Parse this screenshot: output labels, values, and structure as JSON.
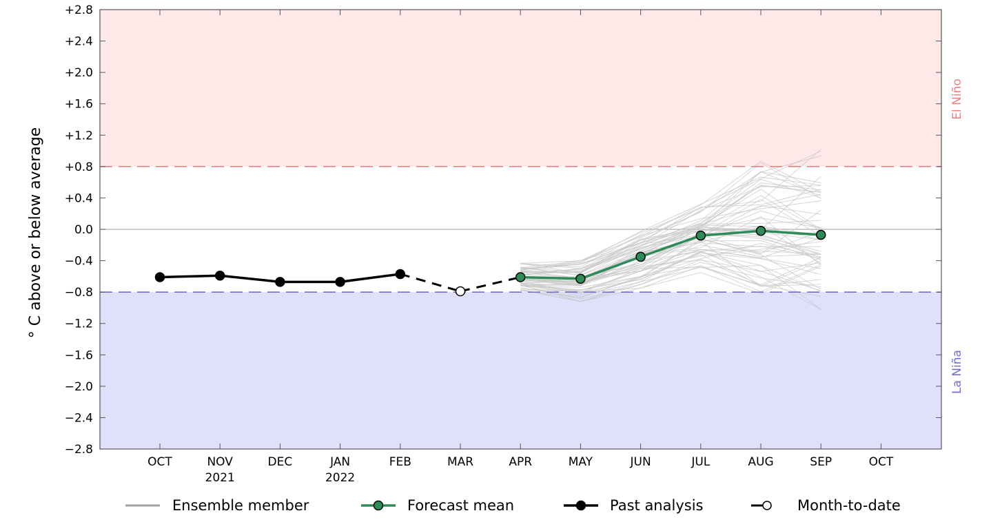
{
  "chart_data": {
    "type": "line",
    "ylabel": "° C above or below average",
    "ylim": [
      -2.8,
      2.8
    ],
    "y_ticks": [
      "+2.8",
      "+2.4",
      "+2.0",
      "+1.6",
      "+1.2",
      "+0.8",
      "+0.4",
      "0.0",
      "−0.4",
      "−0.8",
      "−1.2",
      "−1.6",
      "−2.0",
      "−2.4",
      "−2.8"
    ],
    "y_tick_values": [
      2.8,
      2.4,
      2.0,
      1.6,
      1.2,
      0.8,
      0.4,
      0.0,
      -0.4,
      -0.8,
      -1.2,
      -1.6,
      -2.0,
      -2.4,
      -2.8
    ],
    "categories": [
      "OCT",
      "NOV",
      "DEC",
      "JAN",
      "FEB",
      "MAR",
      "APR",
      "MAY",
      "JUN",
      "JUL",
      "AUG",
      "SEP",
      "OCT"
    ],
    "category_years": [
      "",
      "2021",
      "",
      "2022",
      "",
      "",
      "",
      "",
      "",
      "",
      "",
      "",
      ""
    ],
    "thresholds": {
      "el_nino": {
        "label": "El Niño",
        "value": 0.8,
        "color": "#f08080",
        "fill": "#ffe8e8"
      },
      "la_nina": {
        "label": "La Niña",
        "value": -0.8,
        "color": "#7070c8",
        "fill": "#e0e0fc"
      }
    },
    "past_analysis": {
      "name": "Past analysis",
      "months": [
        "OCT",
        "NOV",
        "DEC",
        "JAN",
        "FEB"
      ],
      "values": [
        -0.61,
        -0.59,
        -0.67,
        -0.67,
        -0.57
      ]
    },
    "month_to_date": {
      "name": "Month-to-date",
      "month": "MAR",
      "value": -0.79
    },
    "forecast_mean": {
      "name": "Forecast mean",
      "months": [
        "APR",
        "MAY",
        "JUN",
        "JUL",
        "AUG",
        "SEP"
      ],
      "values": [
        -0.61,
        -0.63,
        -0.35,
        -0.08,
        -0.02,
        -0.07
      ],
      "color": "#2e8b57"
    },
    "ensemble": {
      "name": "Ensemble member",
      "months": [
        "APR",
        "MAY",
        "JUN",
        "JUL",
        "AUG",
        "SEP"
      ],
      "spread_low": [
        -0.8,
        -0.92,
        -0.75,
        -0.55,
        -0.88,
        -1.02
      ],
      "spread_high": [
        -0.42,
        -0.4,
        -0.02,
        0.32,
        0.88,
        1.02
      ],
      "count": 60,
      "color": "#c8c8c8"
    },
    "grid": false,
    "legend_placement": "bottom"
  },
  "legend": {
    "ensemble_label": "Ensemble member",
    "forecast_label": "Forecast mean",
    "past_label": "Past analysis",
    "mtd_label": "Month-to-date"
  }
}
